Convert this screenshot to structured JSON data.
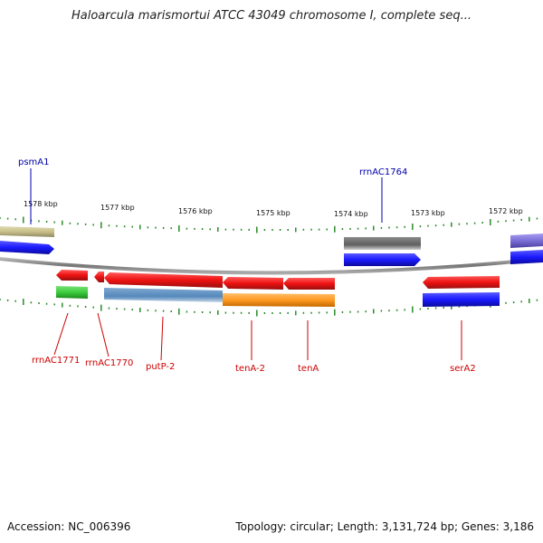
{
  "title": "Haloarcula marismortui ATCC 43049 chromosome I, complete seq...",
  "footer": {
    "accession": "Accession: NC_006396",
    "summary": "Topology: circular; Length: 3,131,724 bp; Genes: 3,186"
  },
  "axis": {
    "ticks": [
      "1578 kbp",
      "1577 kbp",
      "1576 kbp",
      "1575 kbp",
      "1574 kbp",
      "1573 kbp",
      "1572 kbp"
    ]
  },
  "labels_above": [
    {
      "text": "psmA1",
      "color": "#0000aa"
    },
    {
      "text": "rrnAC1764",
      "color": "#0000aa"
    }
  ],
  "labels_below": [
    {
      "text": "rrnAC1771",
      "color": "#cc0000"
    },
    {
      "text": "rrnAC1770",
      "color": "#cc0000"
    },
    {
      "text": "putP-2",
      "color": "#cc0000"
    },
    {
      "text": "tenA-2",
      "color": "#cc0000"
    },
    {
      "text": "tenA",
      "color": "#cc0000"
    },
    {
      "text": "serA2",
      "color": "#cc0000"
    }
  ],
  "colors": {
    "forward_gene": "#1a1aff",
    "reverse_gene": "#ee1111",
    "backbone": "#888888",
    "tick": "#2a8a2a",
    "olive": "#c8c08a",
    "gray": "#6a6a6a",
    "purple": "#7b6fd6",
    "green": "#3ccc3c",
    "steelblue": "#5588bb",
    "orange": "#ff9a22"
  }
}
